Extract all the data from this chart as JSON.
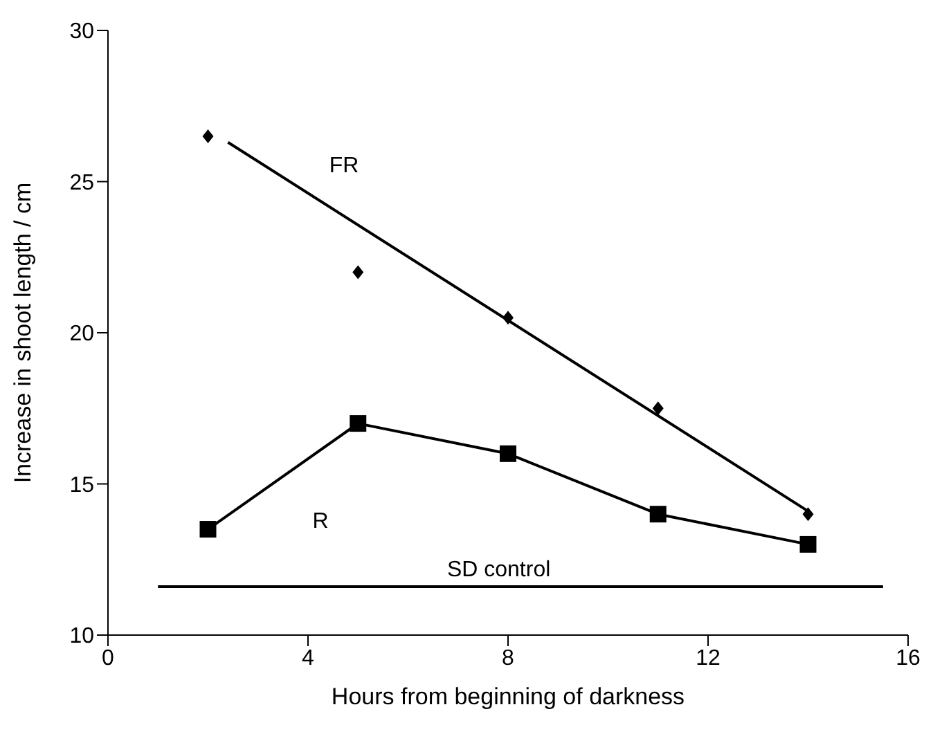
{
  "chart_data": {
    "type": "line",
    "xlabel": "Hours from beginning of darkness",
    "ylabel": "Increase in shoot length / cm",
    "xlim": [
      0,
      16
    ],
    "xticks": [
      0,
      4,
      8,
      12,
      16
    ],
    "ylim": [
      10,
      30
    ],
    "yticks": [
      10,
      15,
      20,
      25,
      30
    ],
    "grid": false,
    "legend": false,
    "line_style": "solid",
    "series": [
      {
        "type": "scatter",
        "marker": "diamond",
        "color": "#000000",
        "x": [
          2,
          5,
          8,
          11,
          14
        ],
        "values": [
          26.5,
          22,
          20.5,
          17.5,
          14
        ]
      },
      {
        "name": "FR",
        "marker": "none",
        "color": "#000000",
        "x": [
          2.4,
          14
        ],
        "values": [
          26.3,
          14.1
        ]
      },
      {
        "name": "R",
        "marker": "square",
        "color": "#000000",
        "x": [
          2,
          5,
          8,
          11,
          14
        ],
        "values": [
          13.5,
          17,
          16,
          14,
          13
        ]
      },
      {
        "name": "SD control",
        "marker": "none",
        "color": "#000000",
        "x": [
          1,
          15.5
        ],
        "values": [
          11.6,
          11.6
        ]
      }
    ]
  }
}
